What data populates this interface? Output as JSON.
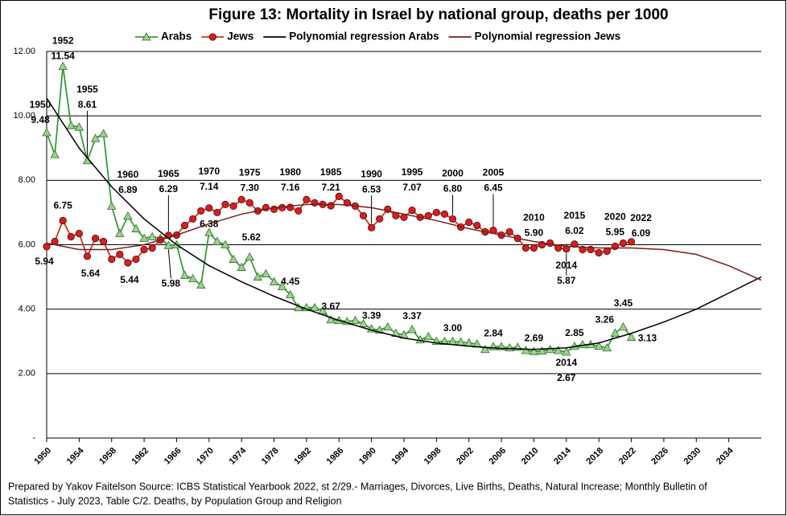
{
  "chart_data": {
    "type": "line",
    "title": "Figure 13: Mortality in Israel by national group, deaths per 1000",
    "footnote": [
      "Prepared by Yakov Faitelson Source: ICBS Statistical Yearbook 2022, st 2/29.- Marriages, Divorces, Live Births, Deaths, Natural Increase; Monthly Bulletin of",
      "Statistics - July 2023, Table C/2. Deaths, by Population Group and Religion"
    ],
    "x": [
      1950,
      1951,
      1952,
      1953,
      1954,
      1955,
      1956,
      1957,
      1958,
      1959,
      1960,
      1961,
      1962,
      1963,
      1964,
      1965,
      1966,
      1967,
      1968,
      1969,
      1970,
      1971,
      1972,
      1973,
      1974,
      1975,
      1976,
      1977,
      1978,
      1979,
      1980,
      1981,
      1982,
      1983,
      1984,
      1985,
      1986,
      1987,
      1988,
      1989,
      1990,
      1991,
      1992,
      1993,
      1994,
      1995,
      1996,
      1997,
      1998,
      1999,
      2000,
      2001,
      2002,
      2003,
      2004,
      2005,
      2006,
      2007,
      2008,
      2009,
      2010,
      2011,
      2012,
      2013,
      2014,
      2015,
      2016,
      2017,
      2018,
      2019,
      2020,
      2021,
      2022
    ],
    "series": [
      {
        "name": "Arabs",
        "color": "#3a9a3a",
        "marker": "triangle",
        "values": [
          9.48,
          8.8,
          11.54,
          9.7,
          9.65,
          8.61,
          9.3,
          9.45,
          7.2,
          6.35,
          6.89,
          6.5,
          6.2,
          6.25,
          6.2,
          5.98,
          6.0,
          5.05,
          4.95,
          4.75,
          6.38,
          6.1,
          6.0,
          5.55,
          5.3,
          5.62,
          5.0,
          5.1,
          4.85,
          4.7,
          4.45,
          4.05,
          4.05,
          4.05,
          3.95,
          3.67,
          3.65,
          3.62,
          3.65,
          3.55,
          3.39,
          3.35,
          3.45,
          3.25,
          3.2,
          3.37,
          3.05,
          3.15,
          3.0,
          3.0,
          3.0,
          2.98,
          2.95,
          2.92,
          2.75,
          2.84,
          2.84,
          2.8,
          2.82,
          2.72,
          2.69,
          2.7,
          2.75,
          2.72,
          2.67,
          2.85,
          2.9,
          2.9,
          2.85,
          2.8,
          3.26,
          3.45,
          3.13
        ],
        "value_labels": [
          "9.48",
          null,
          "11.54",
          null,
          null,
          "8.61",
          null,
          null,
          null,
          null,
          "6.89",
          null,
          null,
          null,
          null,
          "5.98",
          null,
          null,
          null,
          null,
          "6.38",
          null,
          null,
          null,
          null,
          "5.62",
          null,
          null,
          null,
          null,
          "4.45",
          null,
          null,
          null,
          null,
          "3.67",
          null,
          null,
          null,
          null,
          "3.39",
          null,
          null,
          null,
          null,
          "3.37",
          null,
          null,
          null,
          null,
          "3.00",
          null,
          null,
          null,
          null,
          "2.84",
          null,
          null,
          null,
          null,
          "2.69",
          null,
          null,
          null,
          "2.67",
          "2.85",
          null,
          null,
          null,
          null,
          "3.26",
          "3.45",
          "3.13"
        ],
        "year_labels": [
          "1950",
          null,
          "1952",
          null,
          null,
          "1955",
          null,
          null,
          null,
          null,
          "1960",
          null,
          null,
          null,
          null,
          null,
          null,
          null,
          null,
          null,
          null,
          null,
          null,
          null,
          null,
          null,
          null,
          null,
          null,
          null,
          null,
          null,
          null,
          null,
          null,
          null,
          null,
          null,
          null,
          null,
          null,
          null,
          null,
          null,
          null,
          null,
          null,
          null,
          null,
          null,
          null,
          null,
          null,
          null,
          null,
          null,
          null,
          null,
          null,
          null,
          null,
          null,
          null,
          null,
          "2014",
          null,
          null,
          null,
          null,
          null,
          null,
          null,
          null
        ]
      },
      {
        "name": "Jews",
        "color": "#c0392b",
        "marker": "circle",
        "values": [
          5.94,
          6.1,
          6.75,
          6.25,
          6.35,
          5.64,
          6.2,
          6.1,
          5.55,
          5.7,
          5.44,
          5.55,
          5.85,
          5.9,
          6.15,
          6.29,
          6.3,
          6.6,
          6.8,
          7.05,
          7.14,
          7.0,
          7.25,
          7.2,
          7.4,
          7.3,
          7.05,
          7.15,
          7.1,
          7.15,
          7.16,
          7.05,
          7.4,
          7.3,
          7.25,
          7.21,
          7.5,
          7.3,
          7.2,
          6.9,
          6.53,
          6.8,
          7.1,
          6.9,
          6.85,
          7.07,
          6.85,
          6.9,
          7.0,
          6.95,
          6.8,
          6.55,
          6.7,
          6.6,
          6.4,
          6.45,
          6.3,
          6.4,
          6.2,
          5.9,
          5.9,
          6.0,
          6.05,
          5.9,
          5.87,
          6.02,
          5.85,
          5.85,
          5.75,
          5.8,
          5.95,
          6.05,
          6.09
        ],
        "value_labels": [
          "5.94",
          null,
          "6.75",
          null,
          null,
          "5.64",
          null,
          null,
          null,
          null,
          "5.44",
          null,
          null,
          null,
          null,
          "6.29",
          null,
          null,
          null,
          null,
          "7.14",
          null,
          null,
          null,
          null,
          "7.30",
          null,
          null,
          null,
          null,
          "7.16",
          null,
          null,
          null,
          null,
          "7.21",
          null,
          null,
          null,
          null,
          "6.53",
          null,
          null,
          null,
          null,
          "7.07",
          null,
          null,
          null,
          null,
          "6.80",
          null,
          null,
          null,
          null,
          "6.45",
          null,
          null,
          null,
          null,
          "5.90",
          null,
          null,
          null,
          "5.87",
          "6.02",
          null,
          null,
          null,
          null,
          "5.95",
          null,
          "6.09"
        ],
        "year_labels": [
          null,
          null,
          null,
          null,
          null,
          null,
          null,
          null,
          null,
          null,
          null,
          null,
          null,
          null,
          null,
          "1965",
          null,
          null,
          null,
          null,
          "1970",
          null,
          null,
          null,
          null,
          "1975",
          null,
          null,
          null,
          null,
          "1980",
          null,
          null,
          null,
          null,
          "1985",
          null,
          null,
          null,
          null,
          "1990",
          null,
          null,
          null,
          null,
          "1995",
          null,
          null,
          null,
          null,
          "2000",
          null,
          null,
          null,
          null,
          "2005",
          null,
          null,
          null,
          null,
          "2010",
          null,
          null,
          null,
          "2014",
          "2015",
          null,
          null,
          null,
          null,
          "2020",
          null,
          "2022"
        ]
      },
      {
        "name": "Polynomial regression Arabs",
        "color": "#000000",
        "x": [
          1950,
          1954,
          1958,
          1962,
          1966,
          1970,
          1974,
          1978,
          1982,
          1986,
          1990,
          1994,
          1998,
          2002,
          2006,
          2010,
          2014,
          2018,
          2022,
          2026,
          2030,
          2034,
          2038
        ],
        "values": [
          10.55,
          9.0,
          7.8,
          6.8,
          6.0,
          5.35,
          4.85,
          4.4,
          4.0,
          3.65,
          3.35,
          3.1,
          2.95,
          2.85,
          2.78,
          2.75,
          2.8,
          2.95,
          3.25,
          3.6,
          4.0,
          4.5,
          5.0
        ]
      },
      {
        "name": "Polynomial regression Jews",
        "color": "#7b1c1c",
        "x": [
          1950,
          1954,
          1958,
          1962,
          1966,
          1970,
          1974,
          1978,
          1982,
          1986,
          1990,
          1994,
          1998,
          2002,
          2006,
          2010,
          2014,
          2018,
          2022,
          2026,
          2030,
          2034,
          2038
        ],
        "values": [
          6.05,
          5.85,
          5.85,
          6.0,
          6.3,
          6.65,
          6.95,
          7.15,
          7.25,
          7.25,
          7.15,
          6.95,
          6.75,
          6.5,
          6.3,
          6.1,
          5.95,
          5.9,
          5.9,
          5.85,
          5.7,
          5.35,
          4.9
        ]
      }
    ],
    "xlim": [
      1950,
      2038
    ],
    "xticks": [
      1950,
      1954,
      1958,
      1962,
      1966,
      1970,
      1974,
      1978,
      1982,
      1986,
      1990,
      1994,
      1998,
      2002,
      2006,
      2010,
      2014,
      2018,
      2022,
      2026,
      2030,
      2034
    ],
    "ylim": [
      0,
      12
    ],
    "yticks": [
      {
        "value": 0,
        "label": "-"
      },
      {
        "value": 2,
        "label": "2.00"
      },
      {
        "value": 4,
        "label": "4.00"
      },
      {
        "value": 6,
        "label": "6.00"
      },
      {
        "value": 8,
        "label": "8.00"
      },
      {
        "value": 10,
        "label": "10.00"
      },
      {
        "value": 12,
        "label": "12.00"
      }
    ],
    "grid": true,
    "legend": "top"
  }
}
